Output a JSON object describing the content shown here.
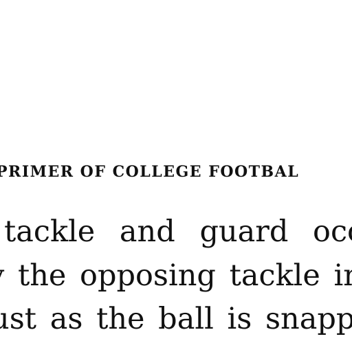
{
  "page": {
    "running_head": "PRIMER OF COLLEGE FOOTBAL",
    "lines": [
      "tackle and guard occa",
      "y the opposing tackle in.",
      "ust as the ball is snapped",
      ""
    ]
  }
}
